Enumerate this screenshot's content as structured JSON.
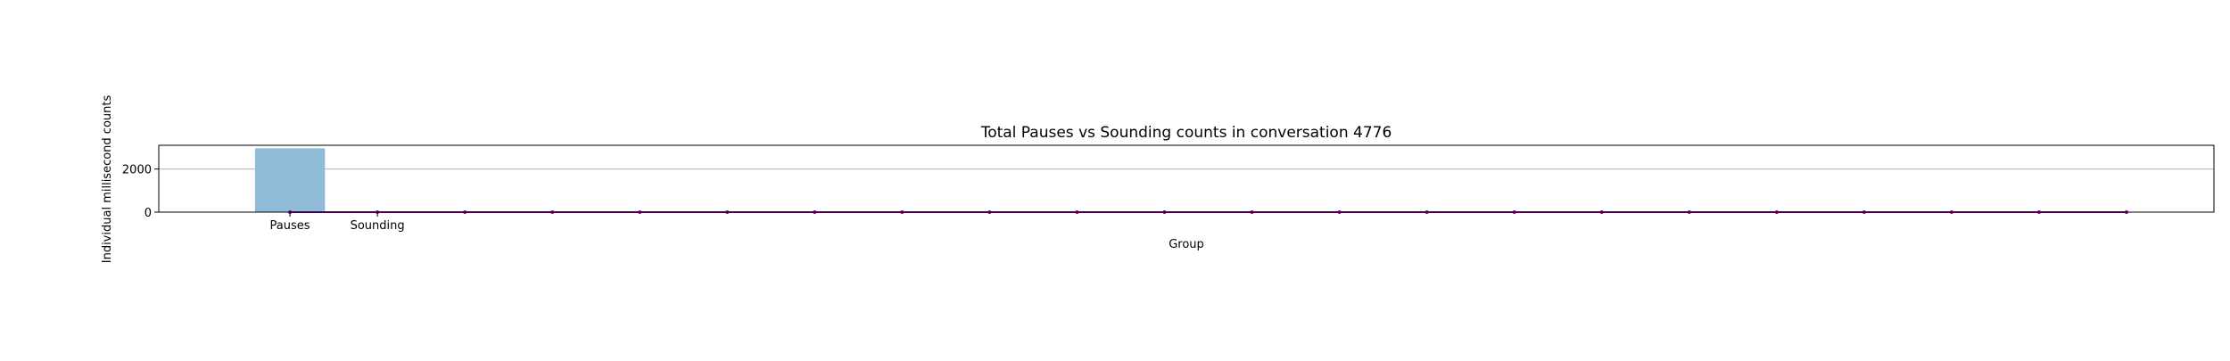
{
  "chart_data": {
    "type": "bar",
    "title": "Total Pauses vs Sounding counts in conversation 4776",
    "xlabel": "Group",
    "ylabel": "Individual millisecond counts",
    "categories": [
      "Pauses",
      "Sounding"
    ],
    "values": [
      2960,
      0
    ],
    "ylim": [
      0,
      3100
    ],
    "yticks": [
      0,
      2000
    ],
    "grid": true,
    "bar_color": "#8fbbd9",
    "line_color": "#8b008b",
    "line_series": {
      "x": [
        0,
        1,
        2,
        3,
        4,
        5,
        6,
        7,
        8,
        9,
        10,
        11,
        12,
        13,
        14,
        15,
        16,
        17,
        18,
        19,
        20,
        21
      ],
      "values": [
        0,
        0,
        0,
        0,
        0,
        0,
        0,
        0,
        0,
        0,
        0,
        0,
        0,
        0,
        0,
        0,
        0,
        0,
        0,
        0,
        0,
        0
      ]
    },
    "xlim": [
      -1.5,
      22.0
    ]
  }
}
